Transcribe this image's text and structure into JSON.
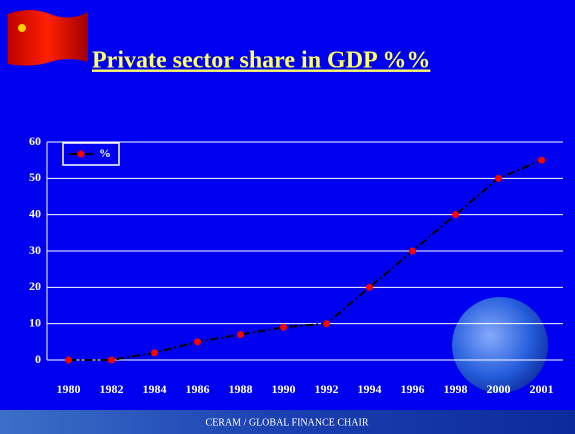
{
  "chart_data": {
    "type": "line",
    "title": "Private sector share in GDP %%",
    "footer": "CERAM / GLOBAL FINANCE CHAIR",
    "categories": [
      "1980",
      "1982",
      "1984",
      "1986",
      "1988",
      "1990",
      "1992",
      "1994",
      "1996",
      "1998",
      "2000",
      "2001"
    ],
    "series": [
      {
        "name": "%",
        "color": "#000000",
        "marker_color": "#ff0000",
        "values": [
          0,
          0,
          2,
          5,
          7,
          9,
          10,
          20,
          30,
          40,
          50,
          55
        ]
      }
    ],
    "ylim": [
      0,
      60
    ],
    "yticks": [
      0,
      10,
      20,
      30,
      40,
      50,
      60
    ],
    "grid": true,
    "legend": "top-left"
  }
}
